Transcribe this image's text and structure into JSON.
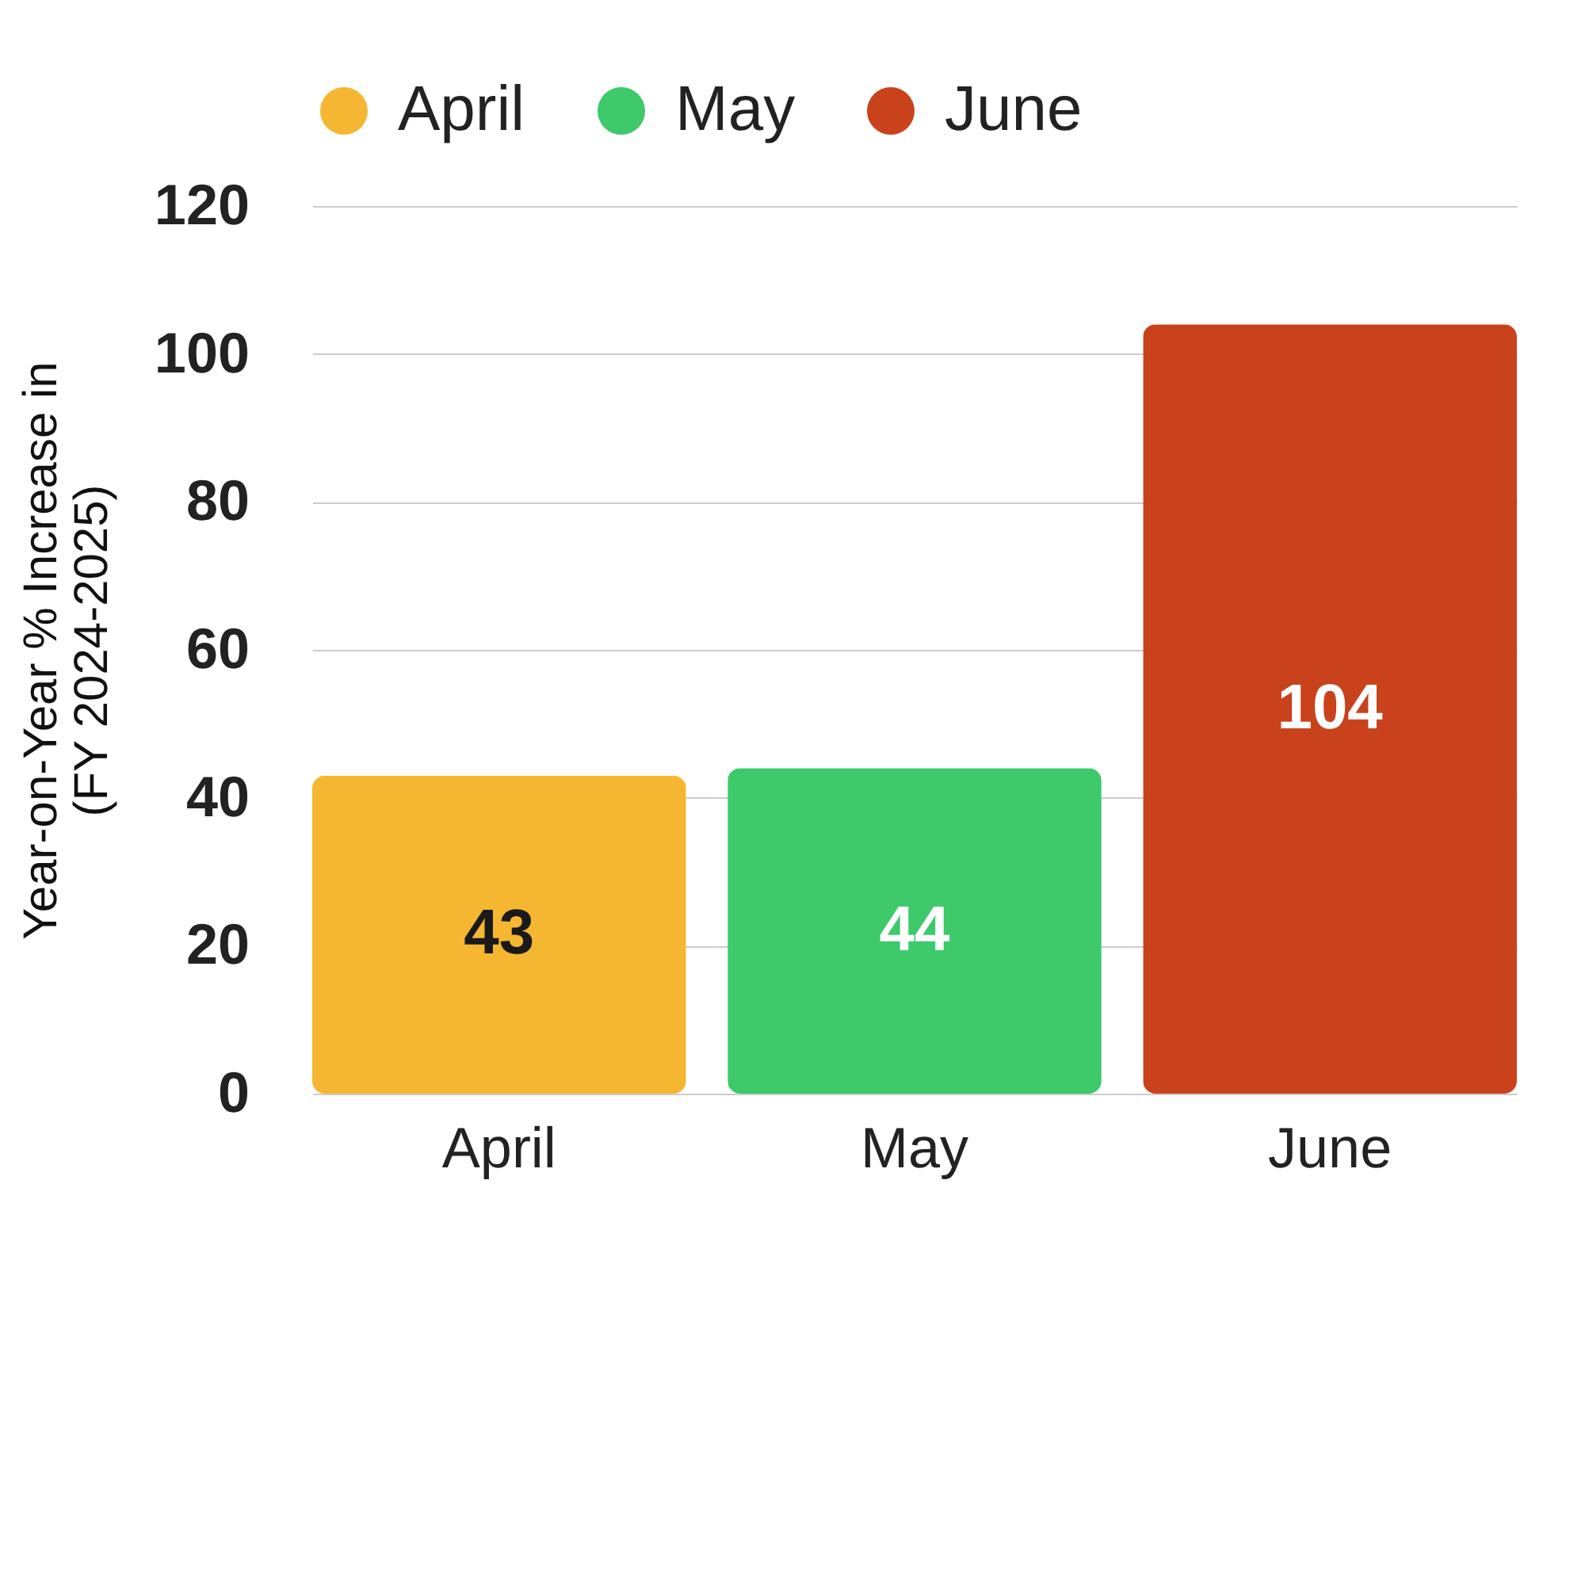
{
  "chart_data": {
    "type": "bar",
    "ylabel": "Year-on-Year % Increase in\n(FY 2024-2025)",
    "categories": [
      "April",
      "May",
      "June"
    ],
    "series": [
      {
        "name": "April",
        "color": "#f5b731",
        "values": [
          43,
          null,
          null
        ]
      },
      {
        "name": "May",
        "color": "#3ec96a",
        "values": [
          null,
          44,
          null
        ]
      },
      {
        "name": "June",
        "color": "#c9421c",
        "values": [
          null,
          null,
          104
        ]
      }
    ],
    "ylim": [
      0,
      120
    ],
    "yticks": [
      0,
      20,
      40,
      60,
      80,
      100,
      120
    ],
    "grid": "y",
    "legend": "top",
    "data_labels": true
  }
}
